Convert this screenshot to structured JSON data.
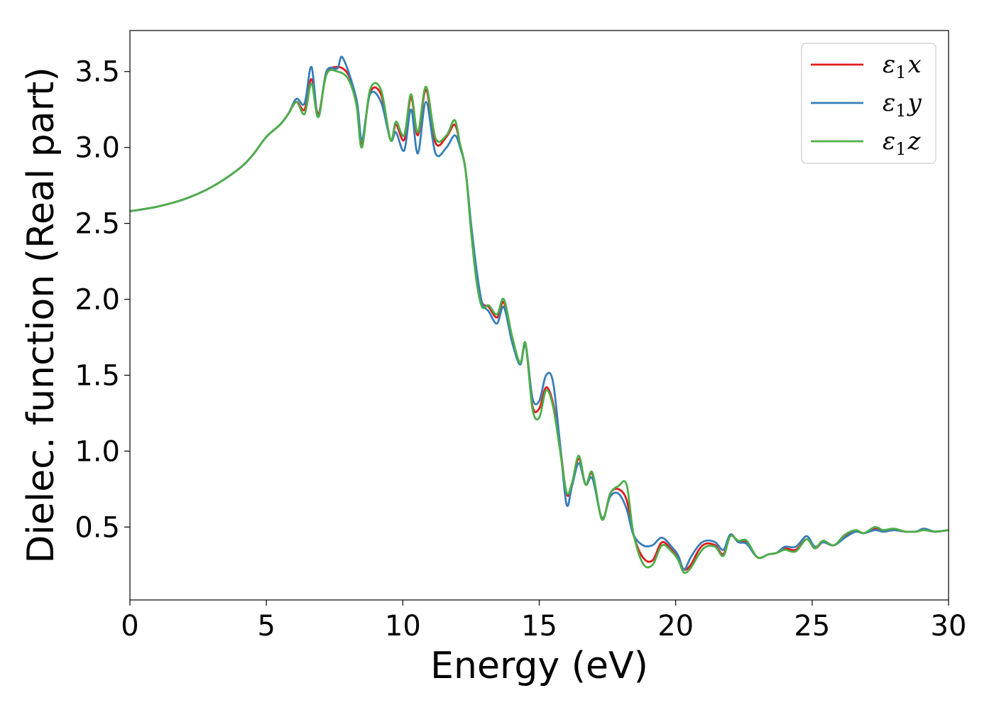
{
  "chart_data": {
    "type": "line",
    "xlabel": "Energy (eV)",
    "ylabel": "Dielec. function (Real part)",
    "xlim": [
      0,
      30
    ],
    "ylim": [
      0.02,
      3.77
    ],
    "xticks": [
      0,
      5,
      10,
      15,
      20,
      25,
      30
    ],
    "xtick_labels": [
      "0",
      "5",
      "10",
      "15",
      "20",
      "25",
      "30"
    ],
    "yticks": [
      0.5,
      1.0,
      1.5,
      2.0,
      2.5,
      3.0,
      3.5
    ],
    "ytick_labels": [
      "0.5",
      "1.0",
      "1.5",
      "2.0",
      "2.5",
      "3.0",
      "3.5"
    ],
    "grid": false,
    "legend_position": "top-right",
    "series": [
      {
        "name": "ε1x",
        "legend_main": "ε",
        "legend_sub": "1",
        "legend_var": "x",
        "color": "#e41a1c",
        "x": [
          0,
          1,
          2,
          3,
          4,
          4.5,
          5,
          5.5,
          5.8,
          6.1,
          6.4,
          6.65,
          6.9,
          7.2,
          7.6,
          8.0,
          8.3,
          8.5,
          8.8,
          9.2,
          9.55,
          9.75,
          10.05,
          10.3,
          10.55,
          10.85,
          11.2,
          11.6,
          11.9,
          12.1,
          12.3,
          12.5,
          12.7,
          12.9,
          13.15,
          13.45,
          13.7,
          14.0,
          14.3,
          14.5,
          14.75,
          15.0,
          15.25,
          15.5,
          15.75,
          16.0,
          16.2,
          16.45,
          16.7,
          16.95,
          17.3,
          17.6,
          17.9,
          18.2,
          18.45,
          18.8,
          19.15,
          19.5,
          19.9,
          20.1,
          20.3,
          20.55,
          20.85,
          21.1,
          21.45,
          21.75,
          22.0,
          22.3,
          22.6,
          23.0,
          23.4,
          23.7,
          24.0,
          24.4,
          24.8,
          25.1,
          25.4,
          25.8,
          26.2,
          26.6,
          26.9,
          27.3,
          27.6,
          28.0,
          28.4,
          28.8,
          29.1,
          29.5,
          30.0
        ],
        "y": [
          2.58,
          2.61,
          2.66,
          2.74,
          2.86,
          2.95,
          3.07,
          3.15,
          3.22,
          3.3,
          3.25,
          3.45,
          3.22,
          3.48,
          3.53,
          3.48,
          3.3,
          3.02,
          3.36,
          3.35,
          3.05,
          3.15,
          3.05,
          3.33,
          3.08,
          3.38,
          3.03,
          3.07,
          3.15,
          3.02,
          2.85,
          2.48,
          2.15,
          1.98,
          1.95,
          1.88,
          1.98,
          1.75,
          1.58,
          1.7,
          1.3,
          1.28,
          1.42,
          1.32,
          1.05,
          0.72,
          0.78,
          0.95,
          0.78,
          0.85,
          0.55,
          0.72,
          0.75,
          0.68,
          0.45,
          0.3,
          0.28,
          0.4,
          0.34,
          0.3,
          0.22,
          0.25,
          0.35,
          0.39,
          0.38,
          0.32,
          0.45,
          0.4,
          0.4,
          0.3,
          0.32,
          0.33,
          0.36,
          0.35,
          0.42,
          0.36,
          0.4,
          0.38,
          0.44,
          0.47,
          0.46,
          0.49,
          0.47,
          0.48,
          0.47,
          0.47,
          0.48,
          0.47,
          0.48
        ]
      },
      {
        "name": "ε1y",
        "legend_main": "ε",
        "legend_sub": "1",
        "legend_var": "y",
        "color": "#377eb8",
        "x": [
          0,
          1,
          2,
          3,
          4,
          4.5,
          5,
          5.5,
          5.8,
          6.1,
          6.4,
          6.65,
          6.9,
          7.2,
          7.6,
          7.8,
          8.3,
          8.5,
          8.8,
          9.2,
          9.55,
          9.75,
          10.05,
          10.3,
          10.55,
          10.85,
          11.2,
          11.6,
          11.9,
          12.1,
          12.3,
          12.5,
          12.7,
          12.9,
          13.15,
          13.45,
          13.7,
          14.0,
          14.3,
          14.5,
          14.75,
          15.0,
          15.25,
          15.5,
          15.75,
          16.0,
          16.2,
          16.45,
          16.7,
          16.95,
          17.3,
          17.6,
          17.9,
          18.2,
          18.45,
          18.8,
          19.15,
          19.5,
          19.9,
          20.1,
          20.3,
          20.55,
          20.85,
          21.1,
          21.45,
          21.75,
          22.0,
          22.3,
          22.6,
          23.0,
          23.4,
          23.7,
          24.0,
          24.4,
          24.8,
          25.1,
          25.4,
          25.8,
          26.2,
          26.6,
          26.9,
          27.3,
          27.6,
          28.0,
          28.4,
          28.8,
          29.1,
          29.5,
          30.0
        ],
        "y": [
          2.58,
          2.61,
          2.66,
          2.74,
          2.86,
          2.95,
          3.07,
          3.15,
          3.22,
          3.32,
          3.29,
          3.53,
          3.2,
          3.5,
          3.52,
          3.59,
          3.32,
          3.05,
          3.35,
          3.3,
          3.05,
          3.1,
          2.98,
          3.25,
          2.96,
          3.3,
          2.96,
          3.0,
          3.08,
          3.0,
          2.85,
          2.5,
          2.2,
          1.98,
          1.92,
          1.84,
          1.95,
          1.72,
          1.57,
          1.7,
          1.35,
          1.33,
          1.5,
          1.46,
          1.07,
          0.65,
          0.77,
          0.92,
          0.78,
          0.82,
          0.56,
          0.7,
          0.72,
          0.62,
          0.45,
          0.38,
          0.38,
          0.43,
          0.36,
          0.31,
          0.22,
          0.3,
          0.38,
          0.41,
          0.4,
          0.35,
          0.45,
          0.4,
          0.39,
          0.3,
          0.32,
          0.33,
          0.37,
          0.37,
          0.44,
          0.37,
          0.4,
          0.38,
          0.43,
          0.47,
          0.46,
          0.48,
          0.47,
          0.48,
          0.47,
          0.47,
          0.49,
          0.47,
          0.48
        ]
      },
      {
        "name": "ε1z",
        "legend_main": "ε",
        "legend_sub": "1",
        "legend_var": "z",
        "color": "#4daf4a",
        "x": [
          0,
          1,
          2,
          3,
          4,
          4.5,
          5,
          5.5,
          5.8,
          6.1,
          6.4,
          6.65,
          6.9,
          7.2,
          7.6,
          8.0,
          8.3,
          8.5,
          8.8,
          9.2,
          9.55,
          9.75,
          10.05,
          10.3,
          10.55,
          10.85,
          11.2,
          11.6,
          11.9,
          12.1,
          12.3,
          12.5,
          12.7,
          12.9,
          13.15,
          13.45,
          13.7,
          14.0,
          14.3,
          14.5,
          14.75,
          15.0,
          15.25,
          15.5,
          15.75,
          16.0,
          16.2,
          16.45,
          16.7,
          16.95,
          17.3,
          17.6,
          17.9,
          18.2,
          18.45,
          18.8,
          19.15,
          19.5,
          19.9,
          20.1,
          20.3,
          20.55,
          20.85,
          21.1,
          21.45,
          21.75,
          22.0,
          22.3,
          22.6,
          23.0,
          23.4,
          23.7,
          24.0,
          24.4,
          24.8,
          25.1,
          25.4,
          25.8,
          26.2,
          26.6,
          26.9,
          27.3,
          27.6,
          28.0,
          28.4,
          28.8,
          29.1,
          29.5,
          30.0
        ],
        "y": [
          2.58,
          2.61,
          2.66,
          2.74,
          2.86,
          2.95,
          3.07,
          3.15,
          3.22,
          3.3,
          3.22,
          3.42,
          3.2,
          3.48,
          3.5,
          3.45,
          3.28,
          3.0,
          3.38,
          3.38,
          3.05,
          3.17,
          3.08,
          3.35,
          3.1,
          3.4,
          3.06,
          3.08,
          3.18,
          3.02,
          2.85,
          2.45,
          2.12,
          1.95,
          1.96,
          1.9,
          2.0,
          1.76,
          1.58,
          1.71,
          1.28,
          1.22,
          1.4,
          1.3,
          1.02,
          0.73,
          0.79,
          0.97,
          0.78,
          0.86,
          0.55,
          0.72,
          0.77,
          0.78,
          0.46,
          0.26,
          0.25,
          0.38,
          0.33,
          0.28,
          0.2,
          0.23,
          0.32,
          0.37,
          0.37,
          0.31,
          0.44,
          0.41,
          0.41,
          0.3,
          0.32,
          0.33,
          0.35,
          0.34,
          0.42,
          0.36,
          0.41,
          0.38,
          0.45,
          0.48,
          0.46,
          0.5,
          0.48,
          0.49,
          0.47,
          0.47,
          0.48,
          0.47,
          0.48
        ]
      }
    ]
  }
}
